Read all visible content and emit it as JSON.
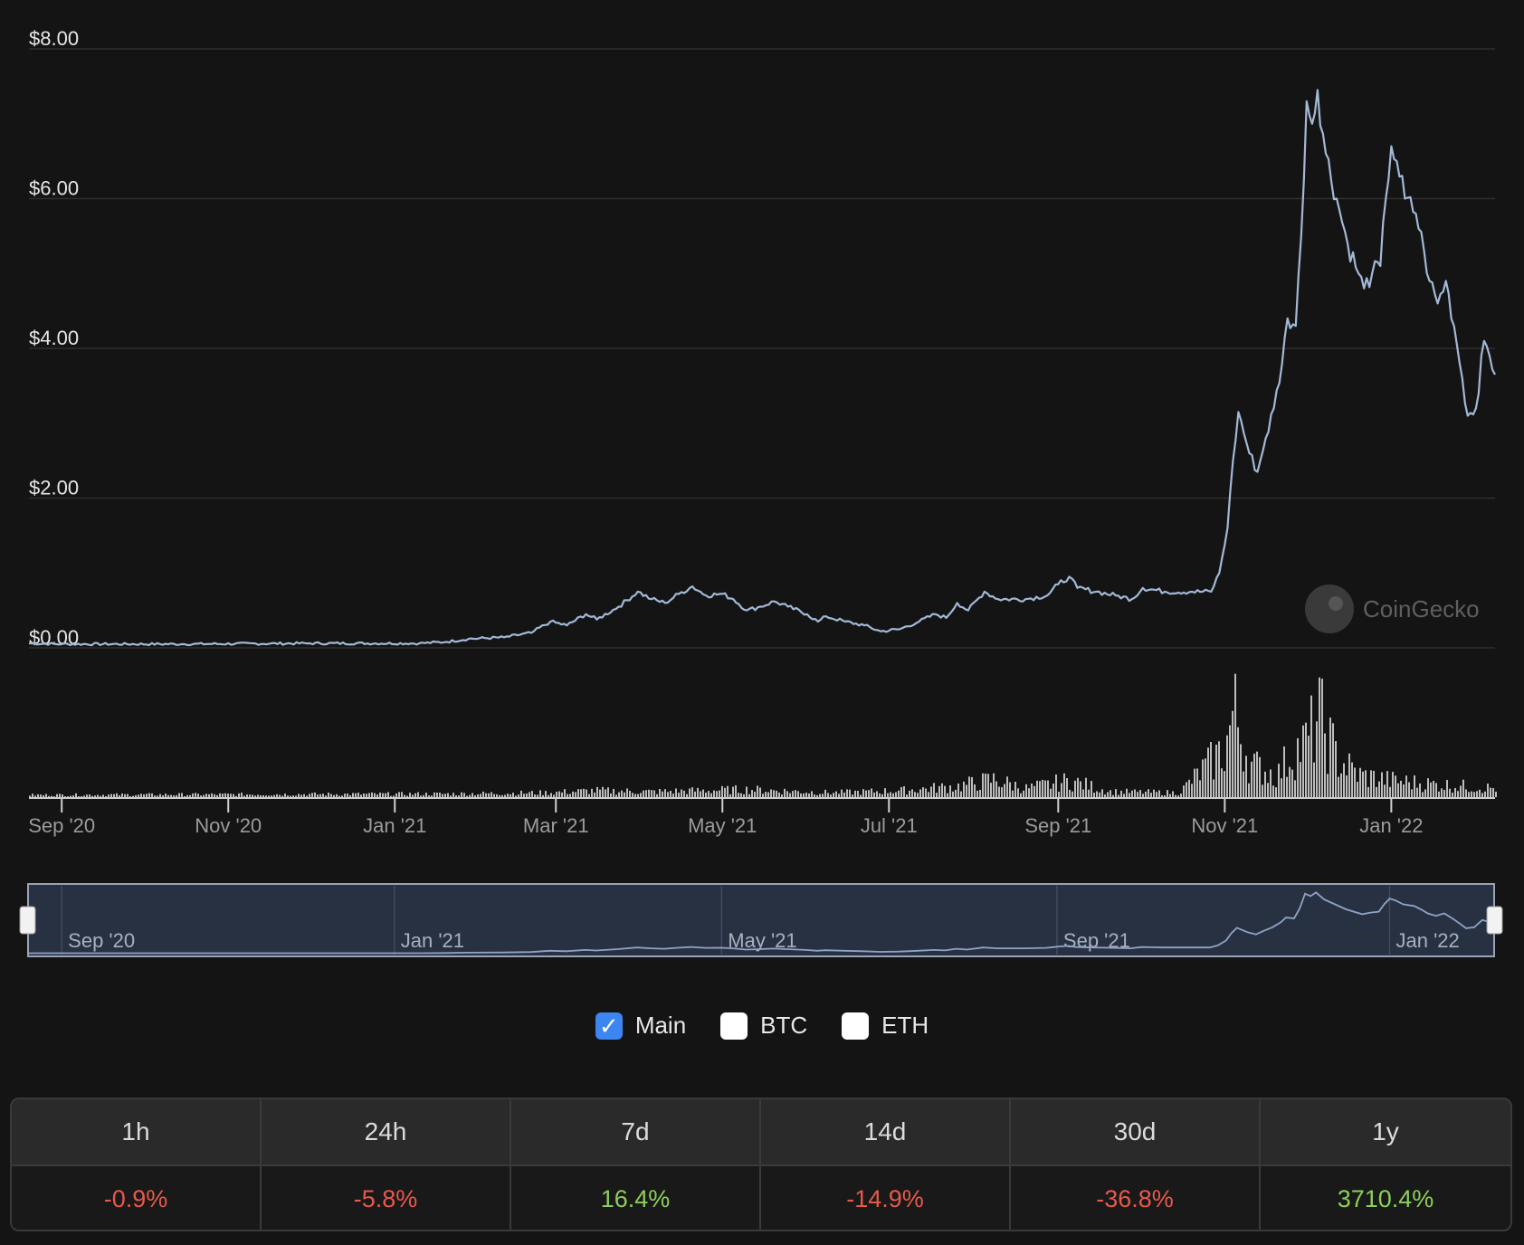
{
  "chart_data": {
    "type": "line",
    "ylim": [
      0,
      8
    ],
    "yticks": [
      "$0.00",
      "$2.00",
      "$4.00",
      "$6.00",
      "$8.00"
    ],
    "x_start": "2020-08-20",
    "x_end": "2022-02-08",
    "x_ticks": [
      {
        "date": "2020-09-01",
        "label": "Sep '20"
      },
      {
        "date": "2020-11-01",
        "label": "Nov '20"
      },
      {
        "date": "2021-01-01",
        "label": "Jan '21"
      },
      {
        "date": "2021-03-01",
        "label": "Mar '21"
      },
      {
        "date": "2021-05-01",
        "label": "May '21"
      },
      {
        "date": "2021-07-01",
        "label": "Jul '21"
      },
      {
        "date": "2021-09-01",
        "label": "Sep '21"
      },
      {
        "date": "2021-11-01",
        "label": "Nov '21"
      },
      {
        "date": "2022-01-01",
        "label": "Jan '22"
      }
    ],
    "series": [
      {
        "values": [
          [
            "2020-08-20",
            0.06
          ],
          [
            "2020-09-01",
            0.05
          ],
          [
            "2020-10-15",
            0.05
          ],
          [
            "2020-12-01",
            0.06
          ],
          [
            "2021-01-10",
            0.06
          ],
          [
            "2021-01-20",
            0.08
          ],
          [
            "2021-01-28",
            0.12
          ],
          [
            "2021-02-10",
            0.14
          ],
          [
            "2021-02-20",
            0.2
          ],
          [
            "2021-02-27",
            0.35
          ],
          [
            "2021-03-05",
            0.3
          ],
          [
            "2021-03-12",
            0.45
          ],
          [
            "2021-03-16",
            0.38
          ],
          [
            "2021-03-24",
            0.55
          ],
          [
            "2021-03-31",
            0.75
          ],
          [
            "2021-04-05",
            0.65
          ],
          [
            "2021-04-10",
            0.6
          ],
          [
            "2021-04-15",
            0.72
          ],
          [
            "2021-04-20",
            0.82
          ],
          [
            "2021-04-25",
            0.7
          ],
          [
            "2021-05-01",
            0.72
          ],
          [
            "2021-05-05",
            0.65
          ],
          [
            "2021-05-10",
            0.5
          ],
          [
            "2021-05-15",
            0.55
          ],
          [
            "2021-05-20",
            0.62
          ],
          [
            "2021-05-25",
            0.55
          ],
          [
            "2021-06-01",
            0.45
          ],
          [
            "2021-06-05",
            0.35
          ],
          [
            "2021-06-08",
            0.42
          ],
          [
            "2021-06-15",
            0.35
          ],
          [
            "2021-06-22",
            0.3
          ],
          [
            "2021-06-28",
            0.22
          ],
          [
            "2021-07-05",
            0.25
          ],
          [
            "2021-07-12",
            0.35
          ],
          [
            "2021-07-18",
            0.45
          ],
          [
            "2021-07-22",
            0.4
          ],
          [
            "2021-07-26",
            0.6
          ],
          [
            "2021-07-30",
            0.5
          ],
          [
            "2021-08-05",
            0.75
          ],
          [
            "2021-08-10",
            0.65
          ],
          [
            "2021-08-20",
            0.65
          ],
          [
            "2021-08-28",
            0.7
          ],
          [
            "2021-09-01",
            0.85
          ],
          [
            "2021-09-05",
            0.95
          ],
          [
            "2021-09-08",
            0.8
          ],
          [
            "2021-09-15",
            0.75
          ],
          [
            "2021-09-22",
            0.7
          ],
          [
            "2021-09-28",
            0.65
          ],
          [
            "2021-10-02",
            0.8
          ],
          [
            "2021-10-10",
            0.75
          ],
          [
            "2021-10-20",
            0.75
          ],
          [
            "2021-10-27",
            0.75
          ],
          [
            "2021-10-30",
            1.0
          ],
          [
            "2021-11-02",
            1.6
          ],
          [
            "2021-11-04",
            2.5
          ],
          [
            "2021-11-06",
            3.15
          ],
          [
            "2021-11-10",
            2.6
          ],
          [
            "2021-11-13",
            2.35
          ],
          [
            "2021-11-16",
            2.8
          ],
          [
            "2021-11-19",
            3.2
          ],
          [
            "2021-11-22",
            3.8
          ],
          [
            "2021-11-24",
            4.4
          ],
          [
            "2021-11-27",
            4.3
          ],
          [
            "2021-11-29",
            5.5
          ],
          [
            "2021-12-01",
            7.3
          ],
          [
            "2021-12-03",
            7.0
          ],
          [
            "2021-12-05",
            7.45
          ],
          [
            "2021-12-08",
            6.6
          ],
          [
            "2021-12-12",
            6.0
          ],
          [
            "2021-12-16",
            5.4
          ],
          [
            "2021-12-20",
            5.0
          ],
          [
            "2021-12-22",
            4.8
          ],
          [
            "2021-12-25",
            5.0
          ],
          [
            "2021-12-28",
            5.1
          ],
          [
            "2021-12-30",
            6.0
          ],
          [
            "2022-01-01",
            6.7
          ],
          [
            "2022-01-03",
            6.5
          ],
          [
            "2022-01-06",
            6.0
          ],
          [
            "2022-01-10",
            5.8
          ],
          [
            "2022-01-13",
            5.3
          ],
          [
            "2022-01-15",
            4.9
          ],
          [
            "2022-01-18",
            4.6
          ],
          [
            "2022-01-21",
            4.9
          ],
          [
            "2022-01-24",
            4.3
          ],
          [
            "2022-01-27",
            3.6
          ],
          [
            "2022-01-29",
            3.1
          ],
          [
            "2022-02-01",
            3.2
          ],
          [
            "2022-02-04",
            4.1
          ],
          [
            "2022-02-06",
            3.9
          ],
          [
            "2022-02-08",
            3.65
          ]
        ]
      }
    ],
    "volume": [
      [
        "2020-08-20",
        0.2
      ],
      [
        "2021-01-20",
        0.3
      ],
      [
        "2021-02-25",
        0.4
      ],
      [
        "2021-03-15",
        0.6
      ],
      [
        "2021-04-05",
        0.5
      ],
      [
        "2021-05-10",
        0.7
      ],
      [
        "2021-06-10",
        0.4
      ],
      [
        "2021-07-05",
        0.6
      ],
      [
        "2021-07-26",
        1.0
      ],
      [
        "2021-08-08",
        1.6
      ],
      [
        "2021-08-20",
        0.8
      ],
      [
        "2021-09-05",
        1.5
      ],
      [
        "2021-09-20",
        0.5
      ],
      [
        "2021-10-15",
        0.4
      ],
      [
        "2021-11-01",
        4.5
      ],
      [
        "2021-11-04",
        8.0
      ],
      [
        "2021-11-10",
        3.0
      ],
      [
        "2021-11-20",
        2.0
      ],
      [
        "2021-11-25",
        4.0
      ],
      [
        "2021-12-01",
        5.0
      ],
      [
        "2021-12-05",
        7.5
      ],
      [
        "2021-12-12",
        3.5
      ],
      [
        "2021-12-20",
        2.0
      ],
      [
        "2022-01-01",
        1.5
      ],
      [
        "2022-01-15",
        1.2
      ],
      [
        "2022-02-08",
        0.8
      ]
    ],
    "navigator_ticks": [
      {
        "date": "2020-09-01",
        "label": "Sep '20"
      },
      {
        "date": "2021-01-01",
        "label": "Jan '21"
      },
      {
        "date": "2021-05-01",
        "label": "May '21"
      },
      {
        "date": "2021-09-01",
        "label": "Sep '21"
      },
      {
        "date": "2022-01-01",
        "label": "Jan '22"
      }
    ],
    "watermark": "CoinGecko",
    "grid": true,
    "colors": {
      "line": "#a3b8d6",
      "grid": "#2e2e2e",
      "volume": "#bdbdbd",
      "navigator_bg": "#283142"
    }
  },
  "legend": [
    {
      "label": "Main",
      "checked": true
    },
    {
      "label": "BTC",
      "checked": false
    },
    {
      "label": "ETH",
      "checked": false
    }
  ],
  "performance": {
    "headers": [
      "1h",
      "24h",
      "7d",
      "14d",
      "30d",
      "1y"
    ],
    "values": [
      "-0.9%",
      "-5.8%",
      "16.4%",
      "-14.9%",
      "-36.8%",
      "3710.4%"
    ]
  }
}
